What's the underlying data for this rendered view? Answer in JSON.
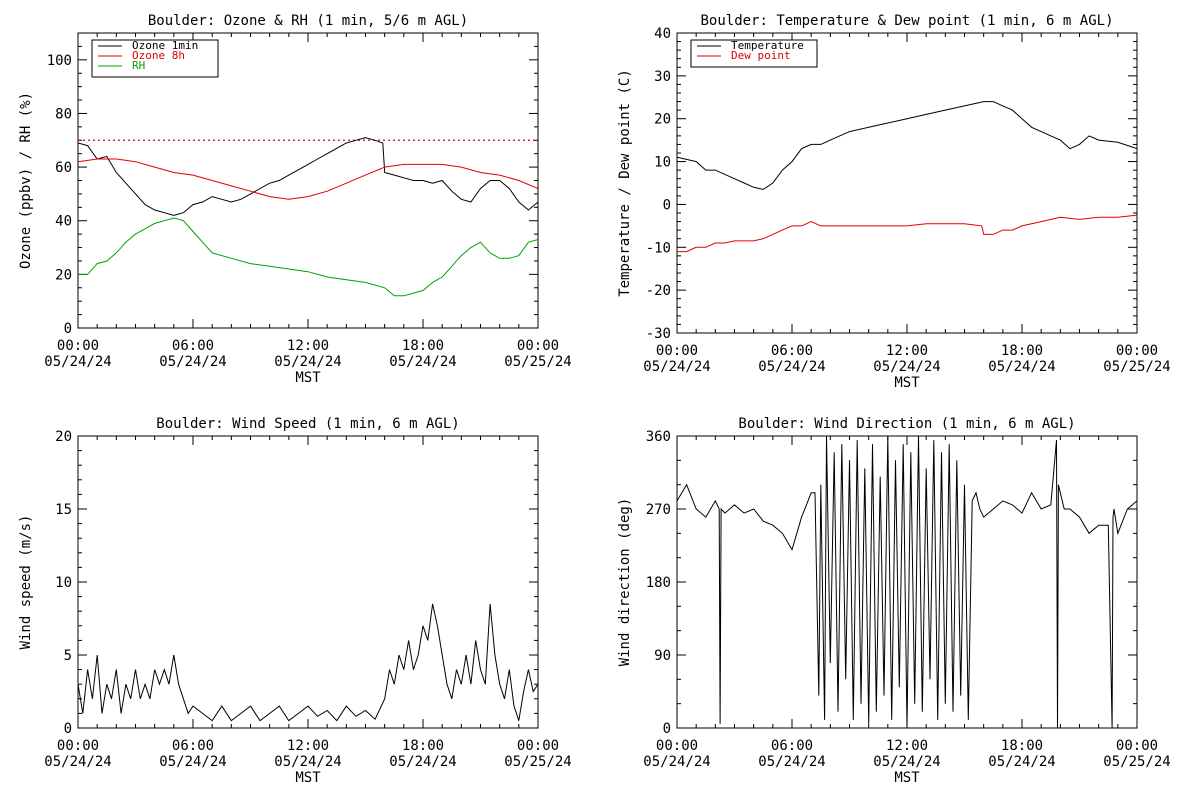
{
  "chart_data": [
    {
      "type": "line",
      "title": "Boulder: Ozone & RH (1 min, 5/6 m AGL)",
      "xlabel": "MST",
      "ylabel": "Ozone (ppbv) / RH (%)",
      "xlim": [
        0,
        24
      ],
      "ylim": [
        0,
        110
      ],
      "y_ticks": [
        0,
        20,
        40,
        60,
        80,
        100
      ],
      "x_tick_labels": [
        [
          "00:00",
          "05/24/24"
        ],
        [
          "06:00",
          "05/24/24"
        ],
        [
          "12:00",
          "05/24/24"
        ],
        [
          "18:00",
          "05/24/24"
        ],
        [
          "00:00",
          "05/25/24"
        ]
      ],
      "reference_line": {
        "y": 70,
        "color": "#e00000",
        "style": "dotted"
      },
      "legend": {
        "placement": "top-left"
      },
      "series": [
        {
          "name": "Ozone 1min",
          "color": "#000000",
          "x": [
            0,
            0.5,
            1,
            1.5,
            2,
            2.5,
            3,
            3.5,
            4,
            4.5,
            5,
            5.5,
            6,
            6.5,
            7,
            7.5,
            8,
            8.5,
            9,
            9.5,
            10,
            10.5,
            11,
            11.5,
            12,
            12.5,
            13,
            13.5,
            14,
            14.5,
            15,
            15.5,
            15.9,
            16,
            16.5,
            17,
            17.5,
            18,
            18.5,
            19,
            19.5,
            20,
            20.5,
            21,
            21.5,
            22,
            22.5,
            23,
            23.5,
            24
          ],
          "y": [
            69,
            68,
            63,
            64,
            58,
            54,
            50,
            46,
            44,
            43,
            42,
            43,
            46,
            47,
            49,
            48,
            47,
            48,
            50,
            52,
            54,
            55,
            57,
            59,
            61,
            63,
            65,
            67,
            69,
            70,
            71,
            70,
            69,
            58,
            57,
            56,
            55,
            55,
            54,
            55,
            51,
            48,
            47,
            52,
            55,
            55,
            52,
            47,
            44,
            47
          ]
        },
        {
          "name": "Ozone 8h",
          "color": "#e00000",
          "x": [
            0,
            1,
            2,
            3,
            4,
            5,
            6,
            7,
            8,
            9,
            10,
            11,
            12,
            13,
            14,
            15,
            16,
            17,
            18,
            19,
            20,
            21,
            22,
            23,
            24
          ],
          "y": [
            62,
            63,
            63,
            62,
            60,
            58,
            57,
            55,
            53,
            51,
            49,
            48,
            49,
            51,
            54,
            57,
            60,
            61,
            61,
            61,
            60,
            58,
            57,
            55,
            52
          ]
        },
        {
          "name": "RH",
          "color": "#00a000",
          "x": [
            0,
            0.5,
            1,
            1.5,
            2,
            2.5,
            3,
            3.5,
            4,
            4.5,
            5,
            5.5,
            6,
            6.5,
            7,
            8,
            9,
            10,
            11,
            12,
            13,
            14,
            15,
            16,
            16.5,
            17,
            17.5,
            18,
            18.5,
            19,
            19.5,
            20,
            20.5,
            21,
            21.5,
            22,
            22.5,
            23,
            23.5,
            24
          ],
          "y": [
            20,
            20,
            24,
            25,
            28,
            32,
            35,
            37,
            39,
            40,
            41,
            40,
            36,
            32,
            28,
            26,
            24,
            23,
            22,
            21,
            19,
            18,
            17,
            15,
            12,
            12,
            13,
            14,
            17,
            19,
            23,
            27,
            30,
            32,
            28,
            26,
            26,
            27,
            32,
            33
          ]
        }
      ]
    },
    {
      "type": "line",
      "title": "Boulder: Temperature & Dew point (1 min, 6 m AGL)",
      "xlabel": "MST",
      "ylabel": "Temperature / Dew point (C)",
      "xlim": [
        0,
        24
      ],
      "ylim": [
        -30,
        40
      ],
      "y_ticks": [
        -30,
        -20,
        -10,
        0,
        10,
        20,
        30,
        40
      ],
      "x_tick_labels": [
        [
          "00:00",
          "05/24/24"
        ],
        [
          "06:00",
          "05/24/24"
        ],
        [
          "12:00",
          "05/24/24"
        ],
        [
          "18:00",
          "05/24/24"
        ],
        [
          "00:00",
          "05/25/24"
        ]
      ],
      "legend": {
        "placement": "top-left"
      },
      "series": [
        {
          "name": "Temperature",
          "color": "#000000",
          "x": [
            0,
            0.5,
            1,
            1.5,
            2,
            2.5,
            3,
            3.5,
            4,
            4.5,
            5,
            5.5,
            6,
            6.5,
            7,
            7.5,
            8,
            9,
            10,
            11,
            12,
            13,
            14,
            15,
            16,
            16.5,
            17,
            17.5,
            18,
            18.5,
            19,
            19.5,
            20,
            20.5,
            21,
            21.5,
            22,
            23,
            24
          ],
          "y": [
            11,
            10.5,
            10,
            8,
            8,
            7,
            6,
            5,
            4,
            3.5,
            5,
            8,
            10,
            13,
            14,
            14,
            15,
            17,
            18,
            19,
            20,
            21,
            22,
            23,
            24,
            24,
            23,
            22,
            20,
            18,
            17,
            16,
            15,
            13,
            14,
            16,
            15,
            14.5,
            13
          ]
        },
        {
          "name": "Dew point",
          "color": "#e00000",
          "x": [
            0,
            0.5,
            1,
            1.5,
            2,
            2.5,
            3,
            3.5,
            4,
            4.5,
            5,
            5.5,
            6,
            6.5,
            7,
            7.5,
            8,
            9,
            10,
            11,
            12,
            13,
            14,
            15,
            15.9,
            16,
            16.5,
            17,
            17.5,
            18,
            19,
            20,
            21,
            22,
            23,
            24
          ],
          "y": [
            -11,
            -11,
            -10,
            -10,
            -9,
            -9,
            -8.5,
            -8.5,
            -8.5,
            -8,
            -7,
            -6,
            -5,
            -5,
            -4,
            -5,
            -5,
            -5,
            -5,
            -5,
            -5,
            -4.5,
            -4.5,
            -4.5,
            -5,
            -7,
            -7,
            -6,
            -6,
            -5,
            -4,
            -3,
            -3.5,
            -3,
            -3,
            -2.5
          ]
        }
      ]
    },
    {
      "type": "line",
      "title": "Boulder: Wind Speed (1 min, 6 m AGL)",
      "xlabel": "MST",
      "ylabel": "Wind speed (m/s)",
      "xlim": [
        0,
        24
      ],
      "ylim": [
        0,
        20
      ],
      "y_ticks": [
        0,
        5,
        10,
        15,
        20
      ],
      "x_tick_labels": [
        [
          "00:00",
          "05/24/24"
        ],
        [
          "06:00",
          "05/24/24"
        ],
        [
          "12:00",
          "05/24/24"
        ],
        [
          "18:00",
          "05/24/24"
        ],
        [
          "00:00",
          "05/25/24"
        ]
      ],
      "series": [
        {
          "name": "",
          "color": "#000000",
          "x": [
            0,
            0.25,
            0.5,
            0.75,
            1,
            1.25,
            1.5,
            1.75,
            2,
            2.25,
            2.5,
            2.75,
            3,
            3.25,
            3.5,
            3.75,
            4,
            4.25,
            4.5,
            4.75,
            5,
            5.25,
            5.5,
            5.75,
            6,
            6.5,
            7,
            7.5,
            8,
            8.5,
            9,
            9.5,
            10,
            10.5,
            11,
            11.5,
            12,
            12.5,
            13,
            13.5,
            14,
            14.5,
            15,
            15.5,
            16,
            16.25,
            16.5,
            16.75,
            17,
            17.25,
            17.5,
            17.75,
            18,
            18.25,
            18.5,
            18.75,
            19,
            19.25,
            19.5,
            19.75,
            20,
            20.25,
            20.5,
            20.75,
            21,
            21.25,
            21.5,
            21.75,
            22,
            22.25,
            22.5,
            22.75,
            23,
            23.25,
            23.5,
            23.75,
            24
          ],
          "y": [
            3,
            1,
            4,
            2,
            5,
            1,
            3,
            2,
            4,
            1,
            3,
            2,
            4,
            2,
            3,
            2,
            4,
            3,
            4,
            3,
            5,
            3,
            2,
            1,
            1.5,
            1,
            0.5,
            1.5,
            0.5,
            1,
            1.5,
            0.5,
            1,
            1.5,
            0.5,
            1,
            1.5,
            0.8,
            1.2,
            0.5,
            1.5,
            0.8,
            1.2,
            0.6,
            2,
            4,
            3,
            5,
            4,
            6,
            4,
            5,
            7,
            6,
            8.5,
            7,
            5,
            3,
            2,
            4,
            3,
            5,
            3,
            6,
            4,
            3,
            8.5,
            5,
            3,
            2,
            4,
            1.5,
            0.5,
            2.5,
            4,
            2.5,
            3
          ]
        }
      ]
    },
    {
      "type": "line",
      "title": "Boulder: Wind Direction (1 min, 6 m AGL)",
      "xlabel": "MST",
      "ylabel": "Wind direction (deg)",
      "xlim": [
        0,
        24
      ],
      "ylim": [
        0,
        360
      ],
      "y_ticks": [
        0,
        90,
        180,
        270,
        360
      ],
      "x_tick_labels": [
        [
          "00:00",
          "05/24/24"
        ],
        [
          "06:00",
          "05/24/24"
        ],
        [
          "12:00",
          "05/24/24"
        ],
        [
          "18:00",
          "05/24/24"
        ],
        [
          "00:00",
          "05/25/24"
        ]
      ],
      "series": [
        {
          "name": "",
          "color": "#000000",
          "x": [
            0,
            0.5,
            1,
            1.5,
            2,
            2.2,
            2.25,
            2.3,
            2.5,
            3,
            3.5,
            4,
            4.5,
            5,
            5.5,
            6,
            6.5,
            7,
            7.2,
            7.4,
            7.5,
            7.7,
            7.8,
            8,
            8.2,
            8.4,
            8.6,
            8.8,
            9,
            9.2,
            9.4,
            9.6,
            9.8,
            10,
            10.2,
            10.4,
            10.6,
            10.8,
            11,
            11.2,
            11.4,
            11.6,
            11.8,
            12,
            12.2,
            12.4,
            12.6,
            12.8,
            13,
            13.2,
            13.4,
            13.6,
            13.8,
            14,
            14.2,
            14.4,
            14.6,
            14.8,
            15,
            15.2,
            15.4,
            15.6,
            15.8,
            16,
            16.5,
            17,
            17.5,
            18,
            18.5,
            19,
            19.5,
            19.8,
            19.85,
            19.9,
            20.2,
            20.5,
            21,
            21.5,
            22,
            22.5,
            22.7,
            22.75,
            22.8,
            23,
            23.5,
            24
          ],
          "y": [
            280,
            300,
            270,
            260,
            280,
            270,
            5,
            270,
            265,
            275,
            265,
            270,
            255,
            250,
            240,
            220,
            260,
            290,
            290,
            40,
            300,
            10,
            360,
            80,
            340,
            20,
            350,
            60,
            330,
            10,
            355,
            30,
            320,
            5,
            350,
            20,
            310,
            40,
            360,
            10,
            330,
            50,
            350,
            0,
            340,
            30,
            360,
            20,
            320,
            60,
            355,
            10,
            340,
            30,
            350,
            20,
            330,
            40,
            300,
            10,
            280,
            290,
            270,
            260,
            270,
            280,
            275,
            265,
            290,
            270,
            275,
            355,
            0,
            300,
            270,
            270,
            260,
            240,
            250,
            250,
            0,
            260,
            270,
            240,
            270,
            280
          ]
        }
      ]
    }
  ]
}
